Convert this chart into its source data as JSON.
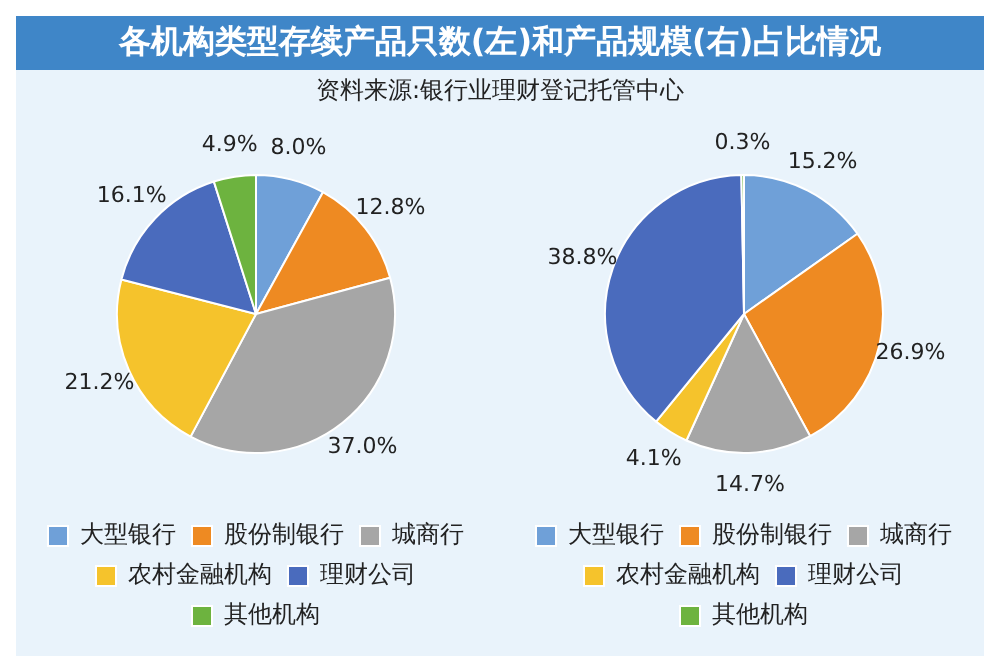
{
  "chart_data": [
    {
      "type": "pie",
      "title": "各机构类型存续产品只数(左)和产品规模(右)占比情况",
      "subtitle": "资料来源:银行业理财登记托管中心",
      "categories": [
        "大型银行",
        "股份制银行",
        "城商行",
        "农村金融机构",
        "理财公司",
        "其他机构"
      ],
      "values": [
        8.0,
        12.8,
        37.0,
        21.2,
        16.1,
        4.9
      ],
      "colors": [
        "#6fa0d8",
        "#ee8a22",
        "#a6a6a6",
        "#f5c32c",
        "#4a6bbd",
        "#6db33f"
      ],
      "value_labels": [
        "8.0%",
        "12.8%",
        "37.0%",
        "21.2%",
        "16.1%",
        "4.9%"
      ],
      "legend": "bottom"
    },
    {
      "type": "pie",
      "categories": [
        "大型银行",
        "股份制银行",
        "城商行",
        "农村金融机构",
        "理财公司",
        "其他机构"
      ],
      "values": [
        15.2,
        26.9,
        14.7,
        4.1,
        38.8,
        0.3
      ],
      "colors": [
        "#6fa0d8",
        "#ee8a22",
        "#a6a6a6",
        "#f5c32c",
        "#4a6bbd",
        "#6db33f"
      ],
      "value_labels": [
        "15.2%",
        "26.9%",
        "14.7%",
        "4.1%",
        "38.8%",
        "0.3%"
      ],
      "legend": "bottom"
    }
  ]
}
